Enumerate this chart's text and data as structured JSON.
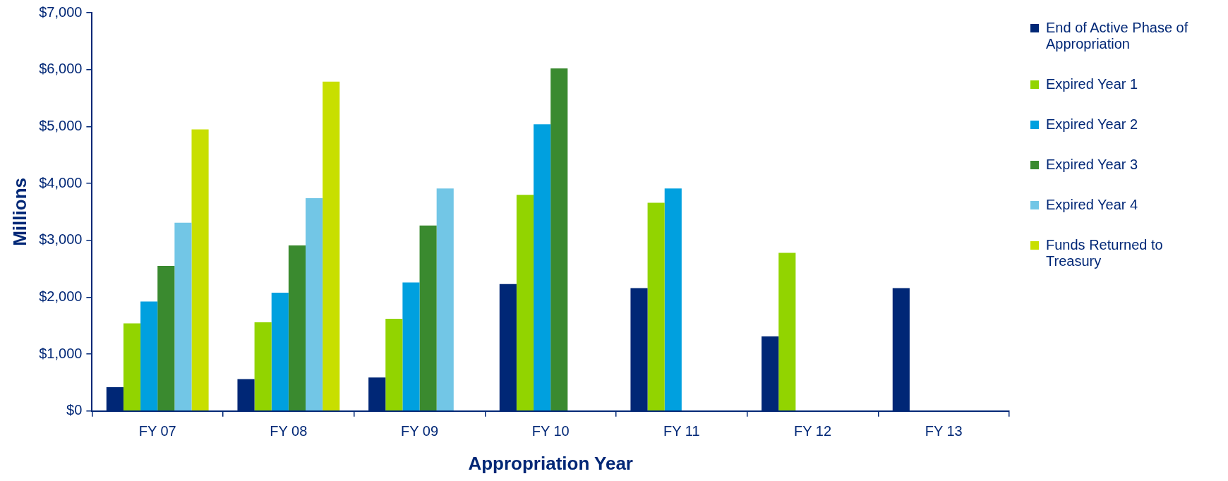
{
  "chart_data": {
    "type": "bar",
    "xlabel": "Appropriation Year",
    "ylabel": "Millions",
    "categories": [
      "FY 07",
      "FY 08",
      "FY 09",
      "FY 10",
      "FY 11",
      "FY 12",
      "FY 13"
    ],
    "series": [
      {
        "name": "End of Active Phase of Appropriation",
        "color": "#002776",
        "values": [
          420,
          560,
          590,
          2230,
          2160,
          1310,
          2160
        ]
      },
      {
        "name": "Expired Year 1",
        "color": "#92d400",
        "values": [
          1540,
          1560,
          1620,
          3800,
          3660,
          2780,
          null
        ]
      },
      {
        "name": "Expired Year 2",
        "color": "#00a0df",
        "values": [
          1925,
          2080,
          2260,
          5040,
          3910,
          null,
          null
        ]
      },
      {
        "name": "Expired Year 3",
        "color": "#3a8a2f",
        "values": [
          2550,
          2910,
          3260,
          6020,
          null,
          null,
          null
        ]
      },
      {
        "name": "Expired Year 4",
        "color": "#72c6e6",
        "values": [
          3310,
          3740,
          3910,
          null,
          null,
          null,
          null
        ]
      },
      {
        "name": "Funds Returned to Treasury",
        "color": "#c8df00",
        "values": [
          4950,
          5790,
          null,
          null,
          null,
          null,
          null
        ]
      }
    ],
    "ylim": [
      0,
      7000
    ],
    "yticks": [
      {
        "value": 0,
        "label": "$0"
      },
      {
        "value": 1000,
        "label": "$1,000"
      },
      {
        "value": 2000,
        "label": "$2,000"
      },
      {
        "value": 3000,
        "label": "$3,000"
      },
      {
        "value": 4000,
        "label": "$4,000"
      },
      {
        "value": 5000,
        "label": "$5,000"
      },
      {
        "value": 6000,
        "label": "$6,000"
      },
      {
        "value": 7000,
        "label": "$7,000"
      }
    ],
    "grid": false,
    "legend": "right"
  }
}
